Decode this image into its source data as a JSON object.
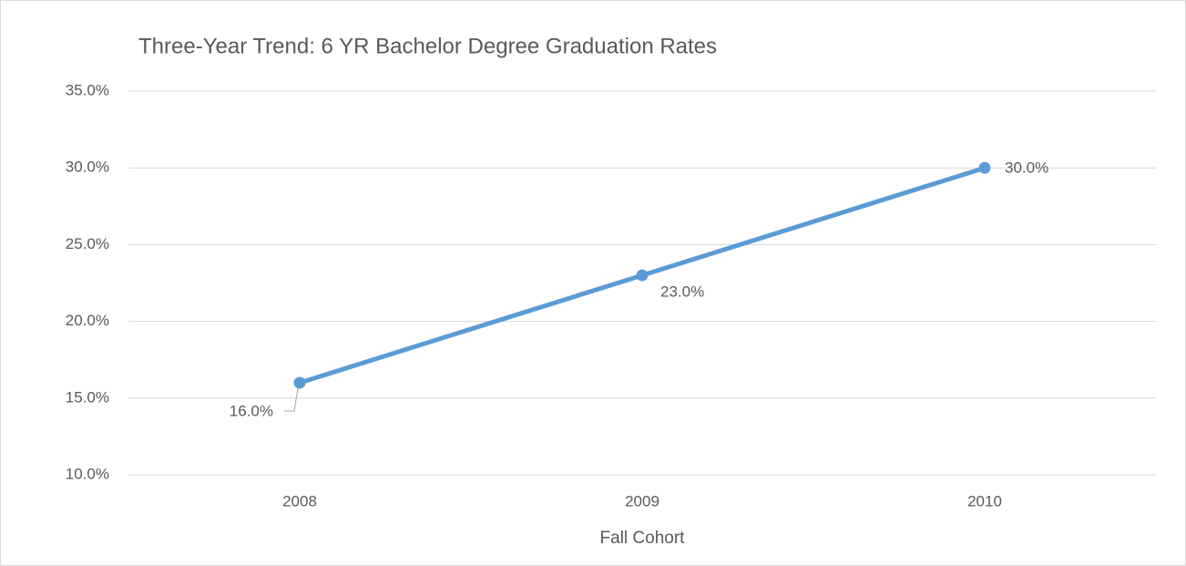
{
  "chart_data": {
    "type": "line",
    "title": "Three-Year Trend: 6 YR Bachelor Degree Graduation Rates",
    "x_label": "Fall Cohort",
    "categories": [
      "2008",
      "2009",
      "2010"
    ],
    "values": [
      16,
      23,
      30
    ],
    "value_labels": [
      "16.0%",
      "23.0%",
      "30.0%"
    ],
    "color": "#5b9bd5",
    "ylim": [
      10,
      35
    ],
    "yticks": [
      {
        "value": 10,
        "label": "10.0%"
      },
      {
        "value": 15,
        "label": "15.0%"
      },
      {
        "value": 20,
        "label": "20.0%"
      },
      {
        "value": 25,
        "label": "25.0%"
      },
      {
        "value": 30,
        "label": "30.0%"
      },
      {
        "value": 35,
        "label": "35.0%"
      }
    ],
    "grid": true
  }
}
